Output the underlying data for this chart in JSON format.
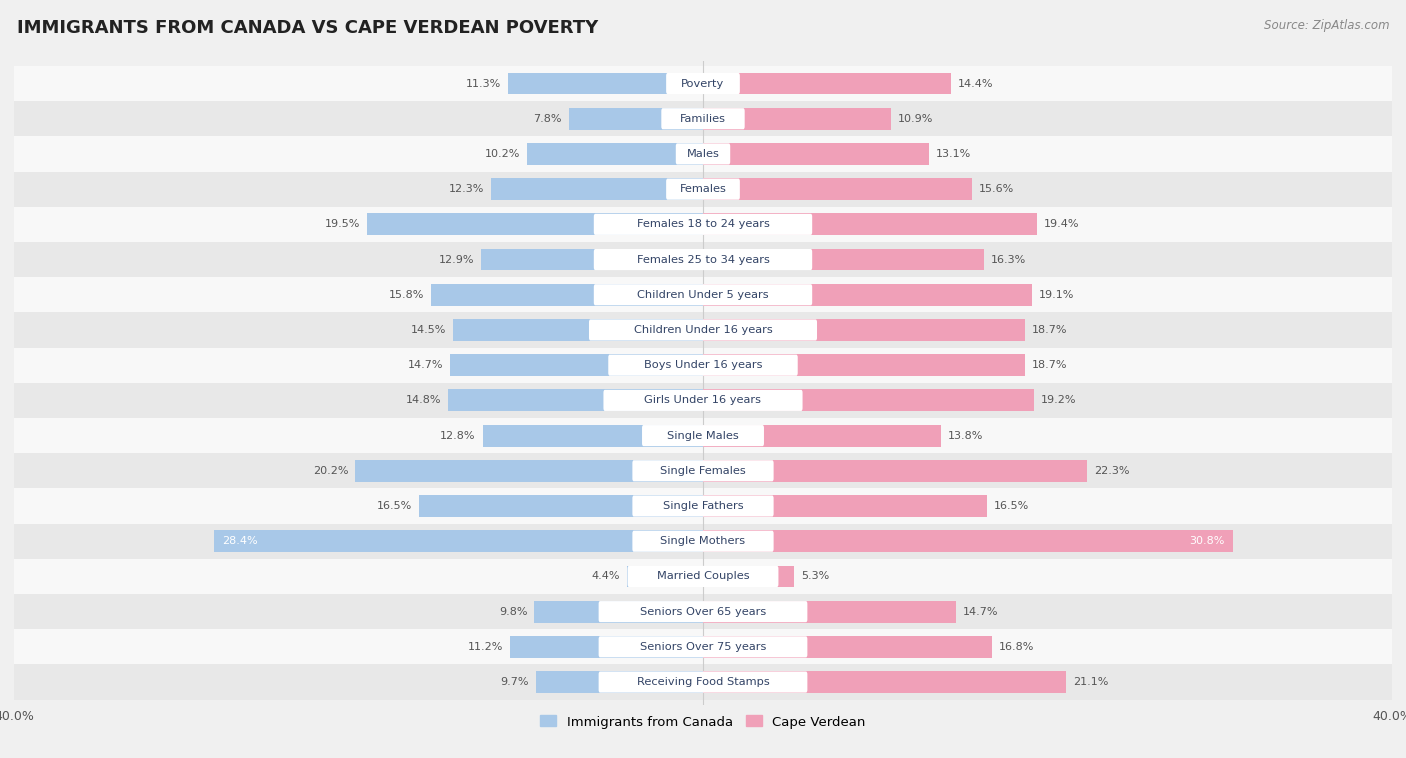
{
  "title": "IMMIGRANTS FROM CANADA VS CAPE VERDEAN POVERTY",
  "source": "Source: ZipAtlas.com",
  "categories": [
    "Poverty",
    "Families",
    "Males",
    "Females",
    "Females 18 to 24 years",
    "Females 25 to 34 years",
    "Children Under 5 years",
    "Children Under 16 years",
    "Boys Under 16 years",
    "Girls Under 16 years",
    "Single Males",
    "Single Females",
    "Single Fathers",
    "Single Mothers",
    "Married Couples",
    "Seniors Over 65 years",
    "Seniors Over 75 years",
    "Receiving Food Stamps"
  ],
  "canada_values": [
    11.3,
    7.8,
    10.2,
    12.3,
    19.5,
    12.9,
    15.8,
    14.5,
    14.7,
    14.8,
    12.8,
    20.2,
    16.5,
    28.4,
    4.4,
    9.8,
    11.2,
    9.7
  ],
  "capeverde_values": [
    14.4,
    10.9,
    13.1,
    15.6,
    19.4,
    16.3,
    19.1,
    18.7,
    18.7,
    19.2,
    13.8,
    22.3,
    16.5,
    30.8,
    5.3,
    14.7,
    16.8,
    21.1
  ],
  "canada_color": "#a8c8e8",
  "capeverde_color": "#f0a0b8",
  "canada_label": "Immigrants from Canada",
  "capeverde_label": "Cape Verdean",
  "axis_max": 40.0,
  "background_color": "#f0f0f0",
  "row_bg_light": "#f8f8f8",
  "row_bg_dark": "#e8e8e8",
  "label_bg": "#ffffff",
  "label_fg": "#334466"
}
